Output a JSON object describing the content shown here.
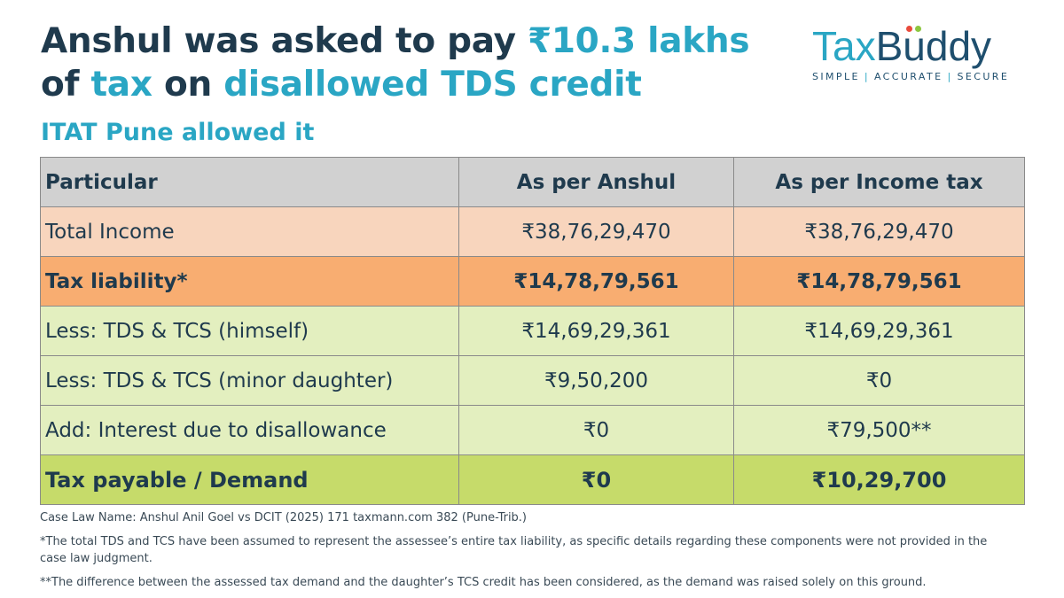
{
  "headline": {
    "line1_a": "Anshul was asked to pay ",
    "line1_b": "₹10.3 lakhs",
    "line2_a": "of ",
    "line2_b": "tax",
    "line2_c": " on ",
    "line2_d": "disallowed TDS credit"
  },
  "subheading": "ITAT Pune allowed it",
  "logo": {
    "word_tax": "Tax",
    "word_b": "B",
    "word_u": "u",
    "word_rest": "ddy",
    "tag1": "SIMPLE",
    "tag2": "ACCURATE",
    "tag3": "SECURE",
    "separator": "|"
  },
  "table": {
    "headers": [
      "Particular",
      "As per Anshul",
      "As per Income tax"
    ],
    "rows": [
      {
        "label": "Total Income",
        "anshul": "₹38,76,29,470",
        "it": "₹38,76,29,470"
      },
      {
        "label": "Tax liability*",
        "anshul": "₹14,78,79,561",
        "it": "₹14,78,79,561"
      },
      {
        "label": "Less: TDS & TCS (himself)",
        "anshul": "₹14,69,29,361",
        "it": "₹14,69,29,361"
      },
      {
        "label": "Less: TDS & TCS (minor daughter)",
        "anshul": "₹9,50,200",
        "it": "₹0"
      },
      {
        "label": "Add: Interest due to disallowance",
        "anshul": "₹0",
        "it": "₹79,500**"
      },
      {
        "label": "Tax payable / Demand",
        "anshul": "₹0",
        "it": "₹10,29,700"
      }
    ]
  },
  "notes": {
    "case_law": "Case Law Name: Anshul Anil Goel vs DCIT (2025) 171 taxmann.com 382 (Pune-Trib.)",
    "note1": "*The total TDS and TCS have been assumed to represent the assessee’s entire tax liability, as specific details regarding these components were not provided in the case law judgment.",
    "note2": "**The difference between the assessed tax demand and the daughter’s TCS credit has been considered, as the demand was raised solely on this ground."
  },
  "colors": {
    "navy": "#1f3a4d",
    "accent_teal": "#2aa6c4",
    "header_gray": "#d1d1d1",
    "row_peach": "#f8d5bd",
    "row_orange": "#f8ad71",
    "row_light_green": "#e3efbf",
    "row_green": "#c6db6a",
    "logo_dot_red": "#e94b3c",
    "logo_dot_green": "#8cc63f"
  }
}
